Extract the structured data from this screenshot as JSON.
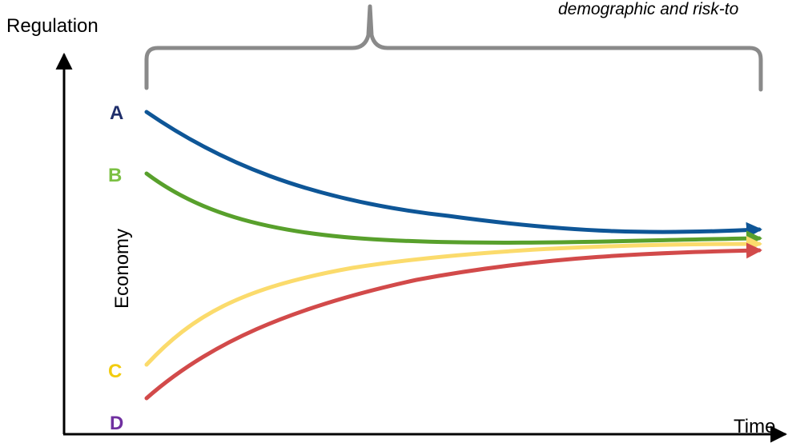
{
  "header": {
    "italic_note": "demographic and risk-to"
  },
  "axes": {
    "y_label": "Regulation",
    "x_label": "Time",
    "inner_label": "Economy"
  },
  "series": [
    {
      "id": "A",
      "label": "A",
      "color": "#0e5697",
      "label_color": "#1f2f6b"
    },
    {
      "id": "B",
      "label": "B",
      "color": "#58a02c",
      "label_color": "#7bc043"
    },
    {
      "id": "C",
      "label": "C",
      "color": "#fbdb6c",
      "label_color": "#f2cc0f"
    },
    {
      "id": "D",
      "label": "D",
      "color": "#d24a4a",
      "label_color": "#7030a0"
    }
  ],
  "colors": {
    "axis": "#000000",
    "brace": "#8a8a8a",
    "text": "#000000"
  }
}
